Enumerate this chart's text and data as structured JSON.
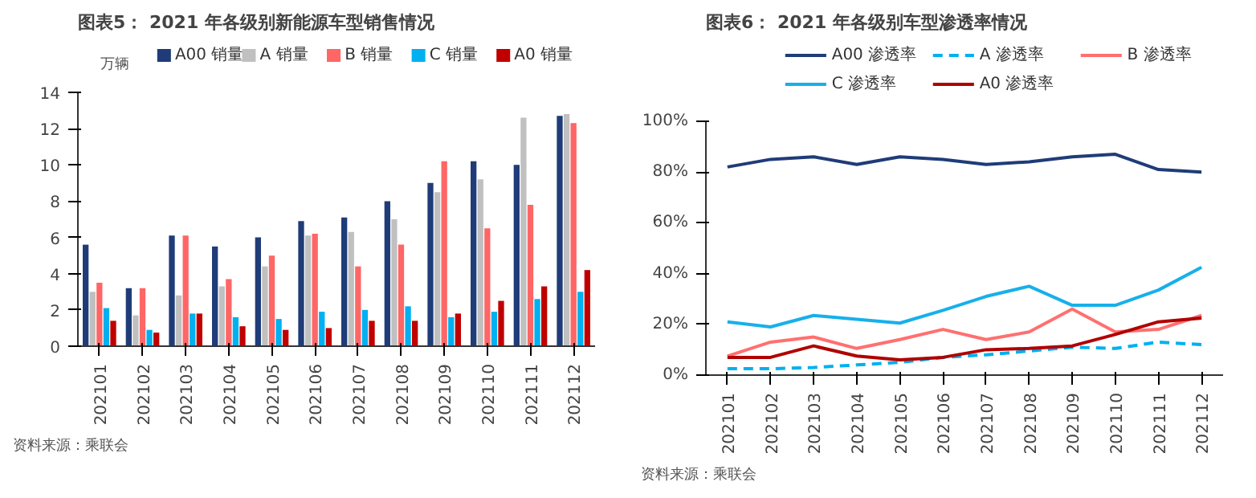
{
  "chart_data": [
    {
      "type": "bar",
      "title": "图表5： 2021 年各级别新能源车型销售情况",
      "ylabel": "万辆",
      "categories": [
        "202101",
        "202102",
        "202103",
        "202104",
        "202105",
        "202106",
        "202107",
        "202108",
        "202109",
        "202110",
        "202111",
        "202112"
      ],
      "series": [
        {
          "name": "A00 销量",
          "color": "#1f3c78",
          "values": [
            5.6,
            3.2,
            6.1,
            5.5,
            6.0,
            6.9,
            7.1,
            8.0,
            9.0,
            10.2,
            10.0,
            12.7
          ]
        },
        {
          "name": "A 销量",
          "color": "#c0c0c0",
          "values": [
            3.0,
            1.7,
            2.8,
            3.3,
            4.4,
            6.1,
            6.3,
            7.0,
            8.5,
            9.2,
            12.6,
            12.8
          ]
        },
        {
          "name": "B 销量",
          "color": "#ff6666",
          "values": [
            3.5,
            3.2,
            6.1,
            3.7,
            5.0,
            6.2,
            4.4,
            5.6,
            10.2,
            6.5,
            7.8,
            12.3
          ]
        },
        {
          "name": "C 销量",
          "color": "#00b0f0",
          "values": [
            2.1,
            0.9,
            1.8,
            1.6,
            1.5,
            1.9,
            2.0,
            2.2,
            1.6,
            1.9,
            2.6,
            3.0
          ]
        },
        {
          "name": "A0 销量",
          "color": "#c00000",
          "values": [
            1.4,
            0.75,
            1.8,
            1.1,
            0.9,
            1.0,
            1.4,
            1.4,
            1.8,
            2.5,
            3.3,
            4.2
          ]
        }
      ],
      "ylim": [
        0,
        14
      ],
      "yticks": [
        0,
        2,
        4,
        6,
        8,
        10,
        12,
        14
      ],
      "legend": "top",
      "annotations": [
        "资料来源：乘联会"
      ]
    },
    {
      "type": "line",
      "title": "图表6： 2021 年各级别车型渗透率情况",
      "categories": [
        "202101",
        "202102",
        "202103",
        "202104",
        "202105",
        "202106",
        "202107",
        "202108",
        "202109",
        "202110",
        "202111",
        "202112"
      ],
      "series": [
        {
          "name": "A00 渗透率",
          "color": "#1f3c78",
          "line_style": "solid",
          "values": [
            82,
            85,
            86,
            83,
            86,
            85,
            83,
            84,
            86,
            87,
            81,
            80
          ]
        },
        {
          "name": "A 渗透率",
          "color": "#00b0f0",
          "line_style": "dashed",
          "values": [
            2.5,
            2.5,
            3,
            4,
            5,
            7,
            8,
            9.5,
            11,
            10.5,
            13,
            12
          ]
        },
        {
          "name": "B 渗透率",
          "color": "#ff7070",
          "values": [
            7.5,
            13,
            15,
            10.5,
            14,
            18,
            14,
            17,
            26,
            17,
            18,
            23.5
          ]
        },
        {
          "name": "C 渗透率",
          "color": "#17b0ea",
          "values": [
            21,
            19,
            23.5,
            22,
            20.5,
            25.5,
            31,
            35,
            27.5,
            27.5,
            33.5,
            42.5
          ]
        },
        {
          "name": "A0 渗透率",
          "color": "#b00000",
          "values": [
            7,
            7,
            11.5,
            7.5,
            6,
            7,
            10,
            10.5,
            11.5,
            16,
            21,
            22.5
          ]
        }
      ],
      "ylim": [
        0,
        100
      ],
      "yticks": [
        {
          "value": 0,
          "label": "0%"
        },
        {
          "value": 20,
          "label": "20%"
        },
        {
          "value": 40,
          "label": "40%"
        },
        {
          "value": 60,
          "label": "60%"
        },
        {
          "value": 80,
          "label": "80%"
        },
        {
          "value": 100,
          "label": "100%"
        }
      ],
      "legend": "top",
      "line_style": "solid",
      "annotations": [
        "资料来源：乘联会"
      ]
    }
  ]
}
